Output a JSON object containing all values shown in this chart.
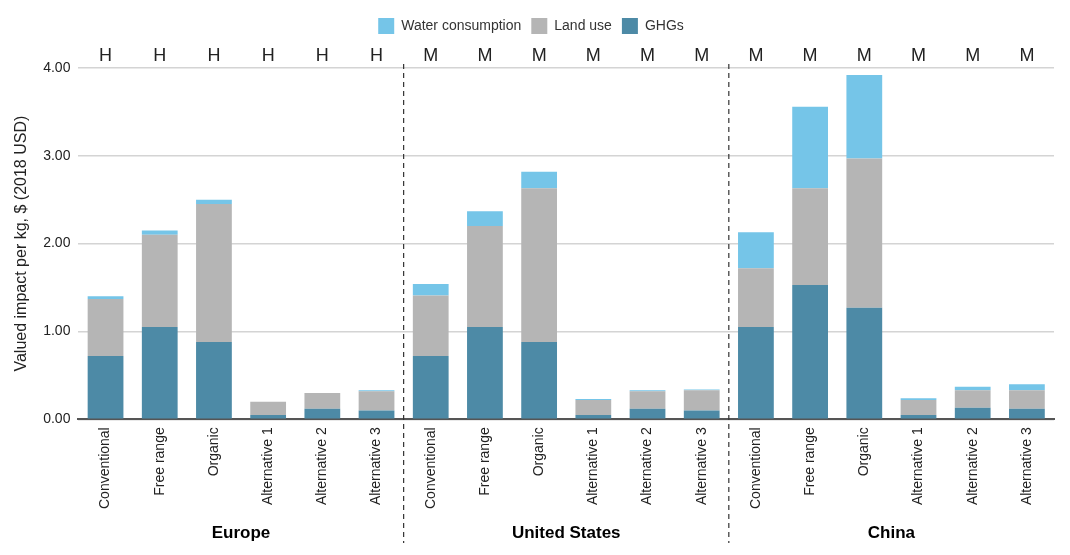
{
  "chart_data": {
    "type": "bar",
    "stacked": true,
    "ylabel": "Valued impact per kg, $ (2018 USD)",
    "categories": [
      "Conventional",
      "Free range",
      "Organic",
      "Alternative 1",
      "Alternative 2",
      "Alternative 3",
      "Conventional",
      "Free range",
      "Organic",
      "Alternative 1",
      "Alternative 2",
      "Alternative 3",
      "Conventional",
      "Free range",
      "Organic",
      "Alternative 1",
      "Alternative 2",
      "Alternative 3"
    ],
    "series": [
      {
        "name": "GHGs",
        "color": "#4d8aa6",
        "values": [
          0.72,
          1.05,
          0.88,
          0.05,
          0.12,
          0.1,
          0.72,
          1.05,
          0.88,
          0.05,
          0.12,
          0.1,
          1.05,
          1.53,
          1.27,
          0.05,
          0.13,
          0.12
        ]
      },
      {
        "name": "Land use",
        "color": "#b5b5b5",
        "values": [
          0.65,
          1.05,
          1.57,
          0.15,
          0.18,
          0.22,
          0.69,
          1.15,
          1.75,
          0.17,
          0.2,
          0.23,
          0.67,
          1.1,
          1.7,
          0.17,
          0.2,
          0.21
        ]
      },
      {
        "name": "Water consumption",
        "color": "#75c5e8",
        "values": [
          0.03,
          0.05,
          0.05,
          0,
          0,
          0.01,
          0.13,
          0.17,
          0.19,
          0.01,
          0.01,
          0.01,
          0.41,
          0.93,
          0.95,
          0.02,
          0.04,
          0.07
        ]
      }
    ],
    "ylim": [
      0,
      4
    ],
    "yticks": [
      {
        "value": 0,
        "label": "0.00"
      },
      {
        "value": 1,
        "label": "1.00"
      },
      {
        "value": 2,
        "label": "2.00"
      },
      {
        "value": 3,
        "label": "3.00"
      },
      {
        "value": 4,
        "label": "4.00"
      }
    ],
    "grid": "y",
    "legend": "top",
    "annotations": [
      "H",
      "H",
      "H",
      "H",
      "H",
      "H",
      "M",
      "M",
      "M",
      "M",
      "M",
      "M",
      "M",
      "M",
      "M",
      "M",
      "M",
      "M",
      "Europe",
      "United States",
      "China"
    ]
  }
}
